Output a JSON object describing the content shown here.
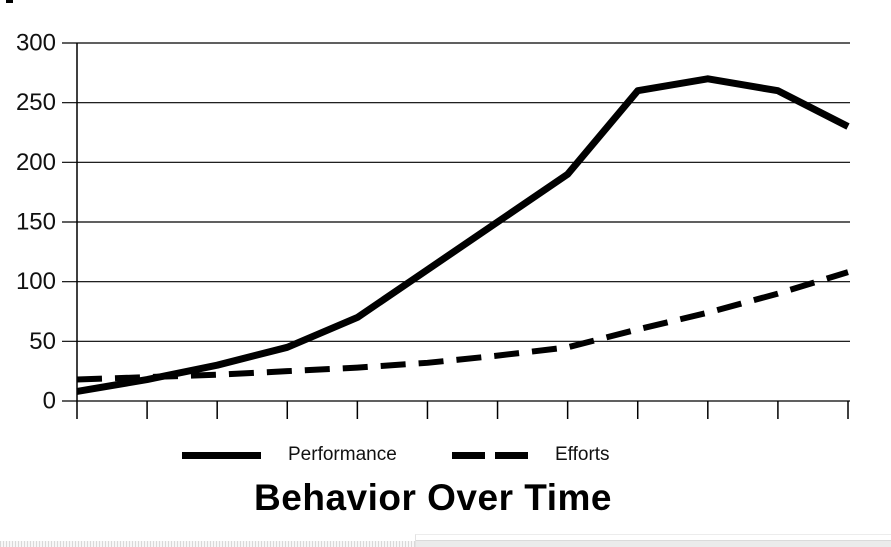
{
  "title": "Behavior Over Time",
  "legend": {
    "items": [
      {
        "label": "Performance",
        "style": "solid"
      },
      {
        "label": "Efforts",
        "style": "dashed"
      }
    ]
  },
  "chart_data": {
    "type": "line",
    "title": "Behavior Over Time",
    "x_tick_count": 12,
    "x_tick_labels": [],
    "series": [
      {
        "name": "Performance",
        "style": "solid",
        "values": [
          8,
          18,
          30,
          45,
          70,
          110,
          150,
          190,
          260,
          270,
          260,
          230
        ]
      },
      {
        "name": "Efforts",
        "style": "dashed",
        "values": [
          18,
          20,
          22,
          25,
          28,
          32,
          38,
          45,
          60,
          74,
          90,
          108
        ]
      }
    ],
    "ylim": [
      0,
      300
    ],
    "yticks": [
      0,
      50,
      100,
      150,
      200,
      250,
      300
    ],
    "grid": "horizontal",
    "legend_position": "bottom",
    "line_color": "#000000",
    "xlabel": "",
    "ylabel": ""
  },
  "colors": {
    "line": "#000000",
    "tick_label": "#111111",
    "background": "#ffffff"
  }
}
